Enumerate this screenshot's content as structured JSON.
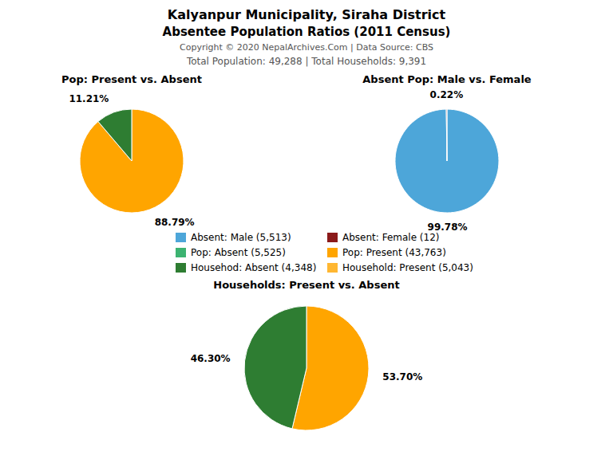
{
  "title": "Kalyanpur Municipality, Siraha District",
  "subtitle": "Absentee Population Ratios (2011 Census)",
  "annotations": [
    "Copyright © 2020 NepalArchives.Com | Data Source: CBS",
    "Total Population: 49,288 | Total Households: 9,391"
  ],
  "legend_items": [
    {
      "name": "Absent: Male (5,513)",
      "color": "#4DA6D9"
    },
    {
      "name": "Absent: Female (12)",
      "color": "#8B1A1A"
    },
    {
      "name": "Pop: Absent (5,525)",
      "color": "#3CB371"
    },
    {
      "name": "Pop: Present (43,763)",
      "color": "#FFA500"
    },
    {
      "name": "Househod: Absent (4,348)",
      "color": "#2E7D32"
    },
    {
      "name": "Household: Present (5,043)",
      "color": "#FFB732"
    }
  ],
  "chart_data": [
    {
      "type": "pie",
      "title": "Pop: Present vs. Absent",
      "values": [
        88.79,
        11.21
      ],
      "value_labels": [
        "88.79%",
        "11.21%"
      ],
      "colors": [
        "#FFA500",
        "#2E7D32"
      ],
      "data_labels": true
    },
    {
      "type": "pie",
      "title": "Absent Pop: Male vs. Female",
      "values": [
        99.78,
        0.22
      ],
      "value_labels": [
        "99.78%",
        "0.22%"
      ],
      "colors": [
        "#4DA6D9",
        "#8B1A1A"
      ],
      "data_labels": true
    },
    {
      "type": "pie",
      "title": "Households: Present vs. Absent",
      "values": [
        53.7,
        46.3
      ],
      "value_labels": [
        "53.70%",
        "46.30%"
      ],
      "colors": [
        "#FFA500",
        "#2E7D32"
      ],
      "data_labels": true
    }
  ]
}
